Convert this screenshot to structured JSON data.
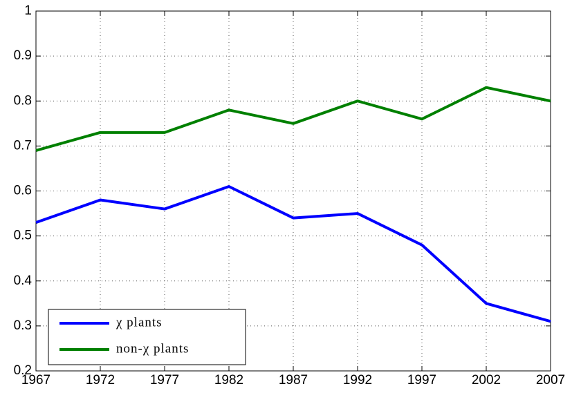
{
  "chart_data": {
    "type": "line",
    "x": [
      1967,
      1972,
      1977,
      1982,
      1987,
      1992,
      1997,
      2002,
      2007
    ],
    "series": [
      {
        "name": "χ plants",
        "color": "#0000ff",
        "values": [
          0.53,
          0.58,
          0.56,
          0.61,
          0.54,
          0.55,
          0.48,
          0.35,
          0.31
        ]
      },
      {
        "name": "non-χ plants",
        "color": "#008000",
        "values": [
          0.69,
          0.73,
          0.73,
          0.78,
          0.75,
          0.8,
          0.76,
          0.83,
          0.8
        ]
      }
    ],
    "xlim": [
      1967,
      2007
    ],
    "xticks": [
      1967,
      1972,
      1977,
      1982,
      1987,
      1992,
      1997,
      2002,
      2007
    ],
    "ylim": [
      0.2,
      1
    ],
    "yticks": [
      0.2,
      0.3,
      0.4,
      0.5,
      0.6,
      0.7,
      0.8,
      0.9,
      1
    ],
    "grid": true,
    "legend": "lower left"
  }
}
